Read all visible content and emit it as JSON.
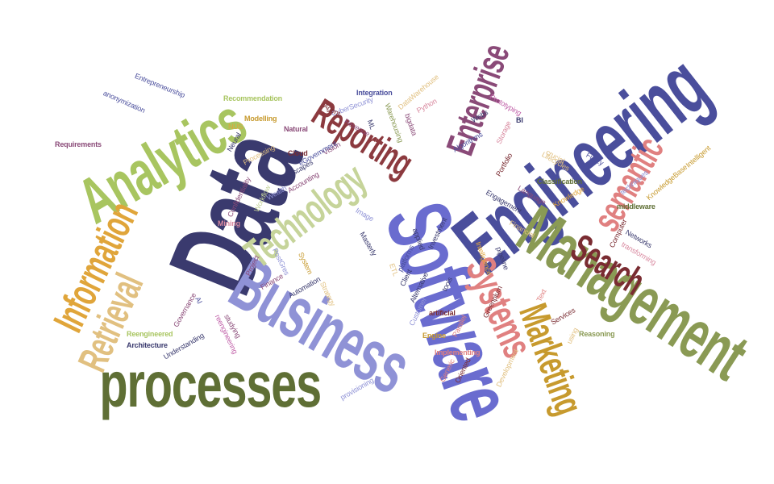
{
  "palette": {
    "navy": "#3a3a6e",
    "indigo": "#4a4e9c",
    "periwinkle": "#8f92d6",
    "blue": "#6a6ccf",
    "olive": "#5f6f35",
    "lime": "#a8c560",
    "sage": "#c6d49a",
    "tan": "#e1c080",
    "gold": "#e0a53a",
    "mustard": "#c79a2e",
    "oliveGreen": "#8a9a54",
    "maroon": "#8c3a3f",
    "rose": "#e08080",
    "pink": "#d98aa0",
    "plum": "#8a4a78",
    "magenta": "#c060a8",
    "darkRed": "#7a2c32"
  },
  "words": [
    {
      "text": "Data"
    },
    {
      "text": "Software"
    },
    {
      "text": "Engineering"
    },
    {
      "text": "Business"
    },
    {
      "text": "processes"
    },
    {
      "text": "Management"
    },
    {
      "text": "Analytics"
    },
    {
      "text": "Information"
    },
    {
      "text": "Retrieval"
    },
    {
      "text": "Technology"
    },
    {
      "text": "Reporting"
    },
    {
      "text": "Enterprise"
    },
    {
      "text": "Systems"
    },
    {
      "text": "Marketing"
    },
    {
      "text": "Search"
    },
    {
      "text": "semantic"
    },
    {
      "text": "Requirements"
    },
    {
      "text": "Entrepreneurship"
    },
    {
      "text": "anonymization"
    },
    {
      "text": "Recommendation"
    },
    {
      "text": "Modelling"
    },
    {
      "text": "NUS"
    },
    {
      "text": "Neural"
    },
    {
      "text": "Natural"
    },
    {
      "text": "Processing"
    },
    {
      "text": "Cloud"
    },
    {
      "text": "Integration"
    },
    {
      "text": "CyberSecurity"
    },
    {
      "text": "DataWarehouse"
    },
    {
      "text": "Agent"
    },
    {
      "text": "ML"
    },
    {
      "text": "Python"
    },
    {
      "text": "bigdata"
    },
    {
      "text": "Warehousing"
    },
    {
      "text": "Revenue"
    },
    {
      "text": "Vision"
    },
    {
      "text": "eGovernment"
    },
    {
      "text": "Landscapes"
    },
    {
      "text": "Accounting"
    },
    {
      "text": "Confidentiality"
    },
    {
      "text": "Workflow"
    },
    {
      "text": "Wealth"
    },
    {
      "text": "Mining"
    },
    {
      "text": "Image"
    },
    {
      "text": "Masterly"
    },
    {
      "text": "Algorithms"
    },
    {
      "text": "Webs"
    },
    {
      "text": "Prototyping"
    },
    {
      "text": "Storage"
    },
    {
      "text": "BI"
    },
    {
      "text": "Lifecycles"
    },
    {
      "text": "Portfolio"
    },
    {
      "text": "Language"
    },
    {
      "text": "Knowledge"
    },
    {
      "text": "crucial"
    },
    {
      "text": "Fuzzy"
    },
    {
      "text": "Classification"
    },
    {
      "text": "techniques"
    },
    {
      "text": "KnowledgeBase"
    },
    {
      "text": "Intelligent"
    },
    {
      "text": "middleware"
    },
    {
      "text": "Engagement"
    },
    {
      "text": "Financial"
    },
    {
      "text": "Computer"
    },
    {
      "text": "Networks"
    },
    {
      "text": "transforming"
    },
    {
      "text": "Intelligence"
    },
    {
      "text": "pipeline"
    },
    {
      "text": "Investment"
    },
    {
      "text": "applied"
    },
    {
      "text": "platforms"
    },
    {
      "text": "ETL"
    },
    {
      "text": "Client"
    },
    {
      "text": "Alternative"
    },
    {
      "text": "tools"
    },
    {
      "text": "Customer"
    },
    {
      "text": "artificial"
    },
    {
      "text": "Greenplum"
    },
    {
      "text": "Text"
    },
    {
      "text": "Services"
    },
    {
      "text": "using"
    },
    {
      "text": "Reasoning"
    },
    {
      "text": "Engine"
    },
    {
      "text": "Parallel"
    },
    {
      "text": "Implementing"
    },
    {
      "text": "Generic"
    },
    {
      "text": "Oriented"
    },
    {
      "text": "Development"
    },
    {
      "text": "provisioning"
    },
    {
      "text": "Project"
    },
    {
      "text": "PostGres"
    },
    {
      "text": "Finance"
    },
    {
      "text": "System"
    },
    {
      "text": "Automation"
    },
    {
      "text": "Strategy"
    },
    {
      "text": "Governance"
    },
    {
      "text": "AI"
    },
    {
      "text": "studying"
    },
    {
      "text": "reengineering"
    },
    {
      "text": "Understanding"
    },
    {
      "text": "Reengineered"
    },
    {
      "text": "Architecture"
    },
    {
      "text": "use"
    }
  ]
}
